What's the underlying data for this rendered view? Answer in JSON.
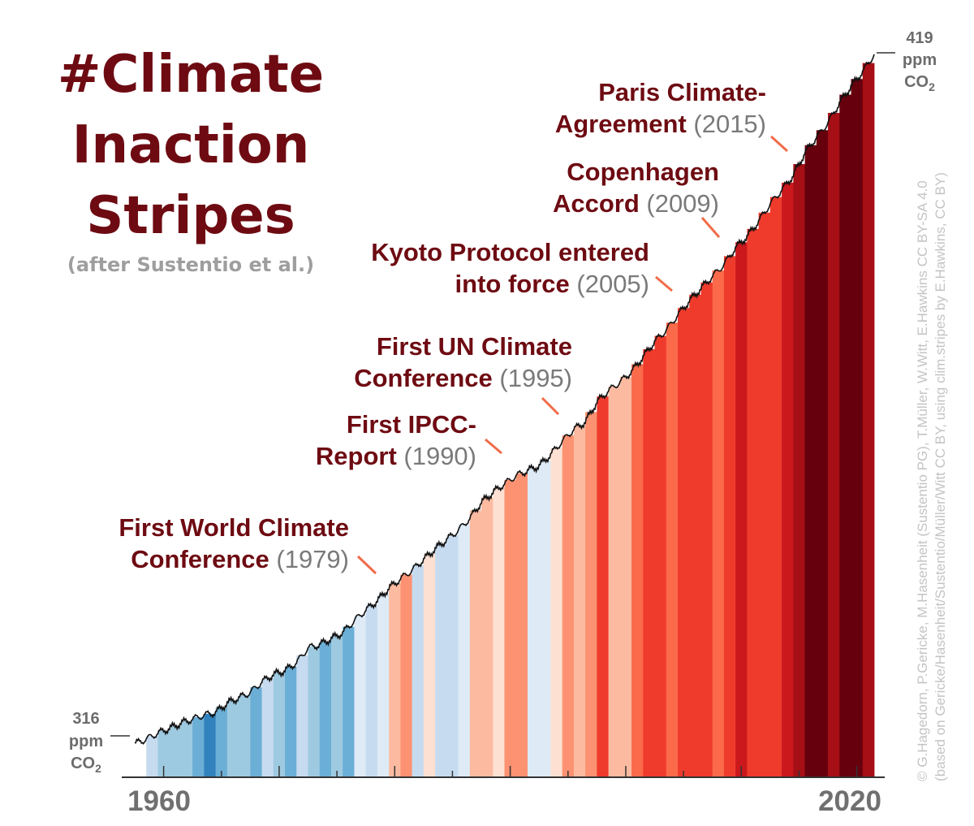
{
  "title": {
    "line1": "#Climate",
    "line2": "Inaction",
    "line3": "Stripes",
    "subtitle": "(after Sustentio et al.)"
  },
  "colors": {
    "title": "#6e0b12",
    "callout_line": "#f06c4a",
    "co2_line": "#111111",
    "axis": "#333333",
    "muted_text": "#7a7a7a"
  },
  "axis": {
    "x_start_label": "1960",
    "x_end_label": "2020",
    "start_ppm": {
      "value": "316",
      "unit": "ppm",
      "gas": "CO",
      "sub": "2"
    },
    "end_ppm": {
      "value": "419",
      "unit": "ppm",
      "gas": "CO",
      "sub": "2"
    }
  },
  "events": [
    {
      "name_lines": [
        "First World Climate",
        "Conference"
      ],
      "year_label": "(1979)",
      "year": 1979
    },
    {
      "name_lines": [
        "First IPCC-",
        "Report"
      ],
      "year_label": "(1990)",
      "year": 1990
    },
    {
      "name_lines": [
        "First UN Climate",
        "Conference"
      ],
      "year_label": "(1995)",
      "year": 1995
    },
    {
      "name_lines": [
        "Kyoto Protocol entered",
        "into force"
      ],
      "year_label": "(2005)",
      "year": 2005
    },
    {
      "name_lines": [
        "Copenhagen",
        "Accord"
      ],
      "year_label": "(2009)",
      "year": 2009
    },
    {
      "name_lines": [
        "Paris Climate-",
        "Agreement"
      ],
      "year_label": "(2015)",
      "year": 2015
    }
  ],
  "credit": {
    "line1": "© G.Hagedorn, P.Gericke, M.Hasenheit (Sustentio PG), T.Müller, W.Witt, E.Hawkins CC BY-SA 4.0",
    "line2": "(based on Gericke/Hasenheit/Sustentio/Müller/Witt CC BY, using clim.stripes by E.Hawkins, CC BY)"
  },
  "chart_data": {
    "type": "area",
    "x_range": [
      1958,
      2022
    ],
    "y_range": [
      316,
      419
    ],
    "ylabel_unit": "ppm CO2",
    "stripe_palette": [
      "#08519c",
      "#3182bd",
      "#6baed6",
      "#9ecae1",
      "#c6dbef",
      "#deebf7",
      "#fee0d2",
      "#fcbba1",
      "#fc9272",
      "#fb6a4a",
      "#ef3b2c",
      "#cb181d",
      "#a50f15",
      "#67000d"
    ],
    "series": [
      {
        "co2_ppm": [
          [
            1958,
            315.3
          ],
          [
            1959,
            316.0
          ],
          [
            1960,
            316.9
          ],
          [
            1961,
            317.6
          ],
          [
            1962,
            318.4
          ],
          [
            1963,
            319.0
          ],
          [
            1964,
            319.6
          ],
          [
            1965,
            320.0
          ],
          [
            1966,
            321.4
          ],
          [
            1967,
            322.2
          ],
          [
            1968,
            323.0
          ],
          [
            1969,
            324.6
          ],
          [
            1970,
            325.7
          ],
          [
            1971,
            326.3
          ],
          [
            1972,
            327.5
          ],
          [
            1973,
            329.7
          ],
          [
            1974,
            330.2
          ],
          [
            1975,
            331.1
          ],
          [
            1976,
            332.0
          ],
          [
            1977,
            333.8
          ],
          [
            1978,
            335.4
          ],
          [
            1979,
            336.8
          ],
          [
            1980,
            338.7
          ],
          [
            1981,
            340.1
          ],
          [
            1982,
            341.4
          ],
          [
            1983,
            343.0
          ],
          [
            1984,
            344.6
          ],
          [
            1985,
            346.0
          ],
          [
            1986,
            347.4
          ],
          [
            1987,
            349.2
          ],
          [
            1988,
            351.6
          ],
          [
            1989,
            353.1
          ],
          [
            1990,
            354.4
          ],
          [
            1991,
            355.6
          ],
          [
            1992,
            356.4
          ],
          [
            1993,
            357.1
          ],
          [
            1994,
            358.8
          ],
          [
            1995,
            360.8
          ],
          [
            1996,
            362.6
          ],
          [
            1997,
            363.7
          ],
          [
            1998,
            366.7
          ],
          [
            1999,
            368.4
          ],
          [
            2000,
            369.7
          ],
          [
            2001,
            371.3
          ],
          [
            2002,
            373.5
          ],
          [
            2003,
            375.8
          ],
          [
            2004,
            377.5
          ],
          [
            2005,
            379.8
          ],
          [
            2006,
            381.9
          ],
          [
            2007,
            383.8
          ],
          [
            2008,
            385.6
          ],
          [
            2009,
            387.4
          ],
          [
            2010,
            389.9
          ],
          [
            2011,
            391.6
          ],
          [
            2012,
            393.9
          ],
          [
            2013,
            396.5
          ],
          [
            2014,
            398.6
          ],
          [
            2015,
            400.8
          ],
          [
            2016,
            404.2
          ],
          [
            2017,
            406.5
          ],
          [
            2018,
            408.7
          ],
          [
            2019,
            411.7
          ],
          [
            2020,
            414.2
          ],
          [
            2021,
            416.4
          ],
          [
            2022,
            419.0
          ]
        ]
      }
    ],
    "stripes": [
      {
        "year": 1959,
        "color_index": 4
      },
      {
        "year": 1960,
        "color_index": 3
      },
      {
        "year": 1961,
        "color_index": 3
      },
      {
        "year": 1962,
        "color_index": 3
      },
      {
        "year": 1963,
        "color_index": 2
      },
      {
        "year": 1964,
        "color_index": 1
      },
      {
        "year": 1965,
        "color_index": 2
      },
      {
        "year": 1966,
        "color_index": 3
      },
      {
        "year": 1967,
        "color_index": 3
      },
      {
        "year": 1968,
        "color_index": 2
      },
      {
        "year": 1969,
        "color_index": 4
      },
      {
        "year": 1970,
        "color_index": 3
      },
      {
        "year": 1971,
        "color_index": 2
      },
      {
        "year": 1972,
        "color_index": 4
      },
      {
        "year": 1973,
        "color_index": 3
      },
      {
        "year": 1974,
        "color_index": 2
      },
      {
        "year": 1975,
        "color_index": 3
      },
      {
        "year": 1976,
        "color_index": 2
      },
      {
        "year": 1977,
        "color_index": 5
      },
      {
        "year": 1978,
        "color_index": 4
      },
      {
        "year": 1979,
        "color_index": 5
      },
      {
        "year": 1980,
        "color_index": 7
      },
      {
        "year": 1981,
        "color_index": 8
      },
      {
        "year": 1982,
        "color_index": 4
      },
      {
        "year": 1983,
        "color_index": 6
      },
      {
        "year": 1984,
        "color_index": 4
      },
      {
        "year": 1985,
        "color_index": 4
      },
      {
        "year": 1986,
        "color_index": 5
      },
      {
        "year": 1987,
        "color_index": 7
      },
      {
        "year": 1988,
        "color_index": 7
      },
      {
        "year": 1989,
        "color_index": 6
      },
      {
        "year": 1990,
        "color_index": 8
      },
      {
        "year": 1991,
        "color_index": 8
      },
      {
        "year": 1992,
        "color_index": 5
      },
      {
        "year": 1993,
        "color_index": 5
      },
      {
        "year": 1994,
        "color_index": 6
      },
      {
        "year": 1995,
        "color_index": 8
      },
      {
        "year": 1996,
        "color_index": 7
      },
      {
        "year": 1997,
        "color_index": 8
      },
      {
        "year": 1998,
        "color_index": 10
      },
      {
        "year": 1999,
        "color_index": 7
      },
      {
        "year": 2000,
        "color_index": 7
      },
      {
        "year": 2001,
        "color_index": 9
      },
      {
        "year": 2002,
        "color_index": 10
      },
      {
        "year": 2003,
        "color_index": 10
      },
      {
        "year": 2004,
        "color_index": 9
      },
      {
        "year": 2005,
        "color_index": 10
      },
      {
        "year": 2006,
        "color_index": 10
      },
      {
        "year": 2007,
        "color_index": 10
      },
      {
        "year": 2008,
        "color_index": 9
      },
      {
        "year": 2009,
        "color_index": 10
      },
      {
        "year": 2010,
        "color_index": 11
      },
      {
        "year": 2011,
        "color_index": 10
      },
      {
        "year": 2012,
        "color_index": 10
      },
      {
        "year": 2013,
        "color_index": 10
      },
      {
        "year": 2014,
        "color_index": 11
      },
      {
        "year": 2015,
        "color_index": 12
      },
      {
        "year": 2016,
        "color_index": 13
      },
      {
        "year": 2017,
        "color_index": 13
      },
      {
        "year": 2018,
        "color_index": 12
      },
      {
        "year": 2019,
        "color_index": 13
      },
      {
        "year": 2020,
        "color_index": 13
      },
      {
        "year": 2021,
        "color_index": 12
      }
    ]
  }
}
